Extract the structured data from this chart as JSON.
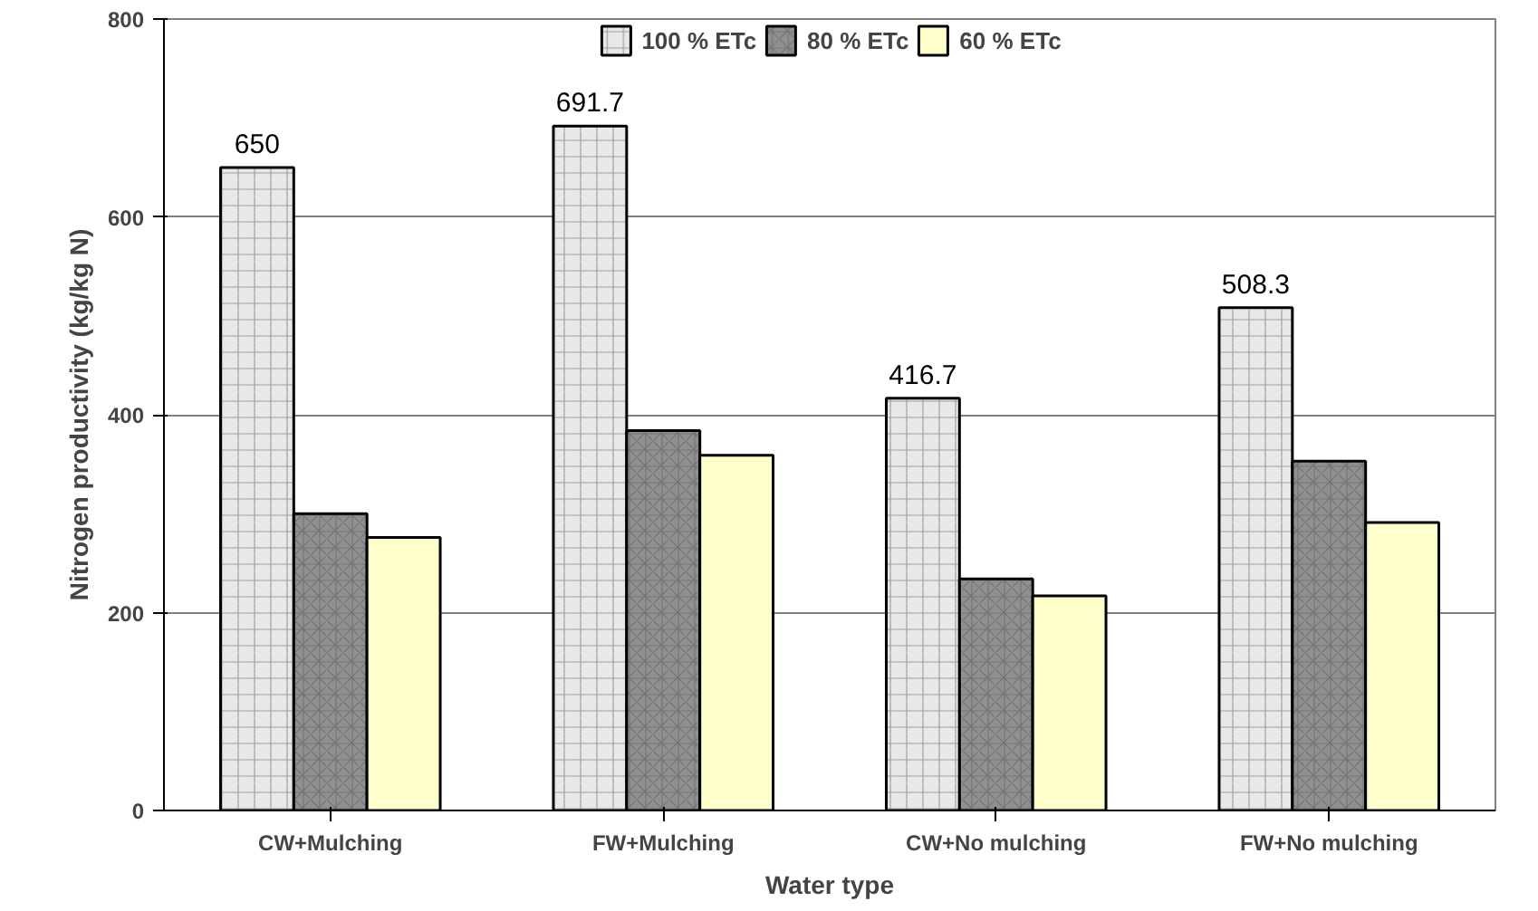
{
  "chart_data": {
    "type": "bar",
    "xlabel": "Water type",
    "ylabel": "Nitrogen productivity (kg/kg N)",
    "categories": [
      "CW+Mulching",
      "FW+Mulching",
      "CW+No mulching",
      "FW+No mulching"
    ],
    "series": [
      {
        "name": "100 % ETc",
        "color": "#e8e8e8",
        "values": [
          650,
          691.7,
          416.7,
          508.3
        ],
        "value_labels": [
          "650",
          "691.7",
          "416.7",
          "508.3"
        ]
      },
      {
        "name": "80 % ETc",
        "color": "#909090",
        "values": [
          300,
          384,
          234,
          353
        ]
      },
      {
        "name": "60 % ETc",
        "color": "#ffffcc",
        "values": [
          276,
          359,
          217,
          291
        ]
      }
    ],
    "ylim": [
      0,
      800
    ],
    "yticks": [
      0,
      200,
      400,
      600,
      800
    ],
    "grid": "y",
    "legend": "top"
  }
}
